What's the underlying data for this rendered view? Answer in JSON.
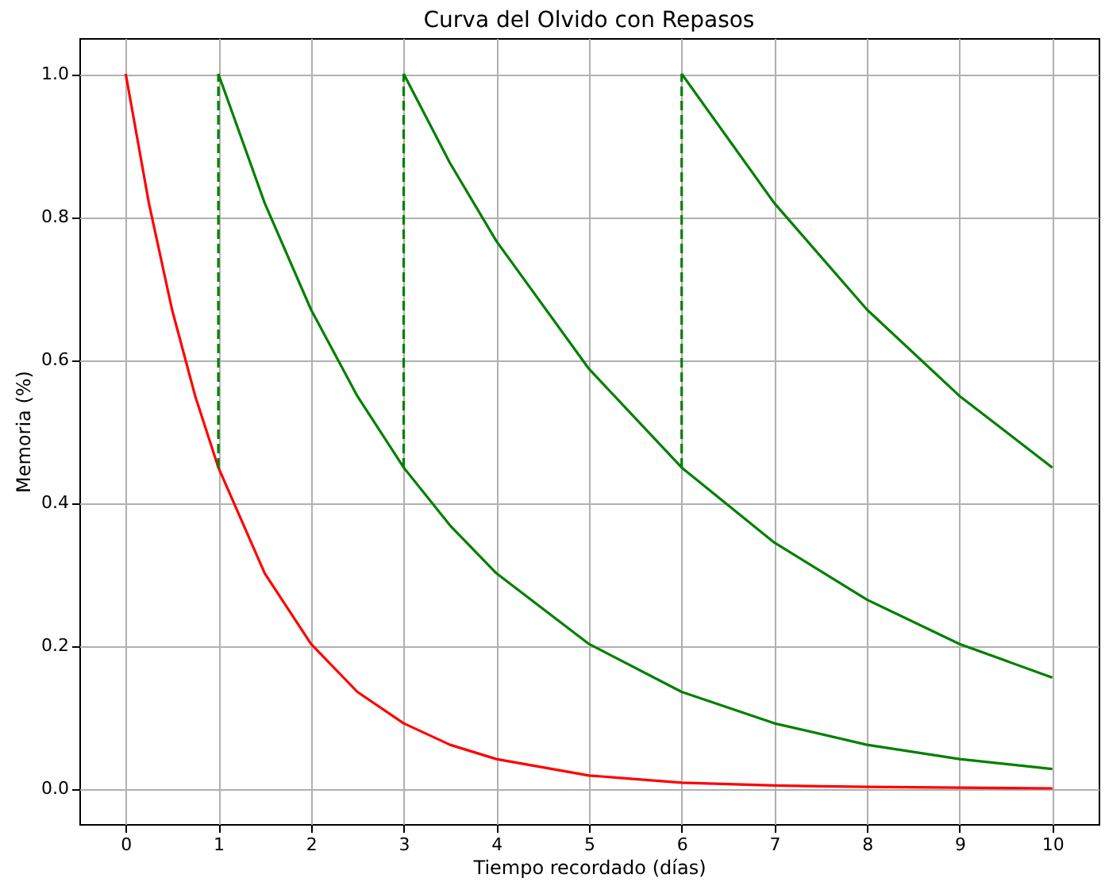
{
  "chart_data": {
    "type": "line",
    "title": "Curva del Olvido con Repasos",
    "xlabel": "Tiempo recordado (días)",
    "ylabel": "Memoria (%)",
    "xlim": [
      -0.5,
      10.5
    ],
    "ylim": [
      -0.05,
      1.05
    ],
    "xticks": [
      0,
      1,
      2,
      3,
      4,
      5,
      6,
      7,
      8,
      9,
      10
    ],
    "yticks": [
      {
        "value": 0,
        "label": "0.0"
      },
      {
        "value": 0.2,
        "label": "0.2"
      },
      {
        "value": 0.4,
        "label": "0.4"
      },
      {
        "value": 0.6,
        "label": "0.6"
      },
      {
        "value": 0.8,
        "label": "0.8"
      },
      {
        "value": 1,
        "label": "1.0"
      }
    ],
    "grid": true,
    "series": [
      {
        "color": "#ff0000",
        "x": [
          0,
          0.25,
          0.5,
          0.75,
          1,
          1.5,
          2,
          2.5,
          3,
          3.5,
          4,
          5,
          6,
          7,
          8,
          9,
          10
        ],
        "values": [
          1,
          0.819,
          0.67,
          0.549,
          0.449,
          0.301,
          0.202,
          0.135,
          0.091,
          0.061,
          0.041,
          0.018,
          0.008,
          0.004,
          0.002,
          0.001,
          0
        ]
      },
      {
        "color": "#008000",
        "x": [
          1,
          1.5,
          2,
          2.5,
          3,
          3.5,
          4,
          5,
          6,
          7,
          8,
          9,
          10
        ],
        "values": [
          1,
          0.819,
          0.67,
          0.549,
          0.449,
          0.368,
          0.301,
          0.202,
          0.135,
          0.091,
          0.061,
          0.041,
          0.027
        ]
      },
      {
        "color": "#008000",
        "x": [
          3,
          3.5,
          4,
          5,
          6,
          7,
          8,
          9,
          10
        ],
        "values": [
          1,
          0.875,
          0.766,
          0.587,
          0.449,
          0.344,
          0.264,
          0.202,
          0.155
        ]
      },
      {
        "color": "#008000",
        "x": [
          6,
          7,
          8,
          9,
          10
        ],
        "values": [
          1,
          0.819,
          0.67,
          0.549,
          0.449
        ]
      },
      {
        "color": "#008000",
        "line_style": "dashed",
        "x": [
          1,
          1
        ],
        "values": [
          0.449,
          1
        ]
      },
      {
        "color": "#008000",
        "line_style": "dashed",
        "x": [
          3,
          3
        ],
        "values": [
          0.449,
          1
        ]
      },
      {
        "color": "#008000",
        "line_style": "dashed",
        "x": [
          6,
          6
        ],
        "values": [
          0.449,
          1
        ]
      }
    ]
  }
}
